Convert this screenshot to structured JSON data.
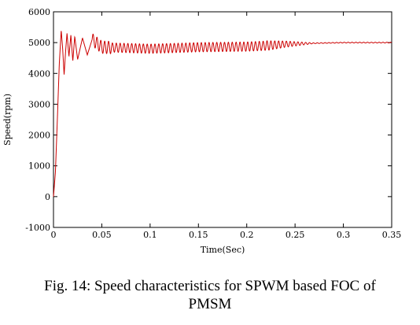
{
  "chart_data": {
    "type": "line",
    "title": "",
    "xlabel": "Time(Sec)",
    "ylabel": "Speed(rpm)",
    "xlim": [
      0,
      0.35
    ],
    "ylim": [
      -1000,
      6000
    ],
    "x_ticks": [
      "0",
      "0.05",
      "0.1",
      "0.15",
      "0.2",
      "0.25",
      "0.3",
      "0.35"
    ],
    "y_ticks": [
      "6000",
      "5000",
      "4000",
      "3000",
      "2000",
      "1000",
      "0",
      "-1000"
    ],
    "grid": false,
    "line_color": "#cc0000",
    "series": [
      {
        "x": [
          0,
          0.002,
          0.004,
          0.006,
          0.008,
          0.0095,
          0.011,
          0.0125,
          0.014,
          0.016,
          0.018,
          0.02,
          0.022,
          0.025,
          0.03,
          0.035,
          0.04,
          0.05,
          0.1,
          0.15,
          0.2,
          0.22,
          0.24,
          0.25,
          0.26,
          0.27,
          0.3,
          0.35
        ],
        "values": [
          0,
          800,
          2500,
          4300,
          5400,
          4800,
          3950,
          4700,
          5300,
          4550,
          5250,
          4400,
          5200,
          4450,
          5150,
          4600,
          5100,
          4850,
          4800,
          4850,
          4870,
          4900,
          4950,
          4960,
          4970,
          4980,
          5000,
          5000
        ]
      }
    ]
  },
  "caption": {
    "line1": "Fig. 14: Speed characteristics for SPWM based FOC of",
    "line2": "PMSM"
  }
}
